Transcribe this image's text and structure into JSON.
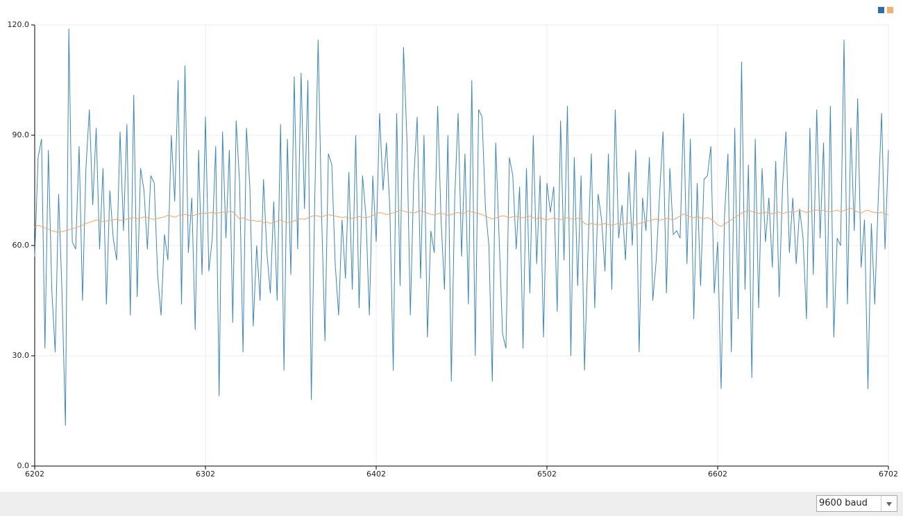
{
  "chart_data": {
    "type": "line",
    "xlim": [
      6202,
      6702
    ],
    "xticks": [
      6202,
      6302,
      6402,
      6502,
      6602,
      6702
    ],
    "ylim": [
      0,
      120
    ],
    "yticks": [
      {
        "value": 0,
        "label": "0.0"
      },
      {
        "value": 30,
        "label": "30.0"
      },
      {
        "value": 60,
        "label": "60.0"
      },
      {
        "value": 90,
        "label": "90.0"
      },
      {
        "value": 120,
        "label": "120.0"
      }
    ],
    "grid": true,
    "legend": "top-right",
    "x": [
      6202,
      6204,
      6206,
      6208,
      6210,
      6212,
      6214,
      6216,
      6218,
      6220,
      6222,
      6224,
      6226,
      6228,
      6230,
      6232,
      6234,
      6236,
      6238,
      6240,
      6242,
      6244,
      6246,
      6248,
      6250,
      6252,
      6254,
      6256,
      6258,
      6260,
      6262,
      6264,
      6266,
      6268,
      6270,
      6272,
      6274,
      6276,
      6278,
      6280,
      6282,
      6284,
      6286,
      6288,
      6290,
      6292,
      6294,
      6296,
      6298,
      6300,
      6302,
      6304,
      6306,
      6308,
      6310,
      6312,
      6314,
      6316,
      6318,
      6320,
      6322,
      6324,
      6326,
      6328,
      6330,
      6332,
      6334,
      6336,
      6338,
      6340,
      6342,
      6344,
      6346,
      6348,
      6350,
      6352,
      6354,
      6356,
      6358,
      6360,
      6362,
      6364,
      6366,
      6368,
      6370,
      6372,
      6374,
      6376,
      6378,
      6380,
      6382,
      6384,
      6386,
      6388,
      6390,
      6392,
      6394,
      6396,
      6398,
      6400,
      6402,
      6404,
      6406,
      6408,
      6410,
      6412,
      6414,
      6416,
      6418,
      6420,
      6422,
      6424,
      6426,
      6428,
      6430,
      6432,
      6434,
      6436,
      6438,
      6440,
      6442,
      6444,
      6446,
      6448,
      6450,
      6452,
      6454,
      6456,
      6458,
      6460,
      6462,
      6464,
      6466,
      6468,
      6470,
      6472,
      6474,
      6476,
      6478,
      6480,
      6482,
      6484,
      6486,
      6488,
      6490,
      6492,
      6494,
      6496,
      6498,
      6500,
      6502,
      6504,
      6506,
      6508,
      6510,
      6512,
      6514,
      6516,
      6518,
      6520,
      6522,
      6524,
      6526,
      6528,
      6530,
      6532,
      6534,
      6536,
      6538,
      6540,
      6542,
      6544,
      6546,
      6548,
      6550,
      6552,
      6554,
      6556,
      6558,
      6560,
      6562,
      6564,
      6566,
      6568,
      6570,
      6572,
      6574,
      6576,
      6578,
      6580,
      6582,
      6584,
      6586,
      6588,
      6590,
      6592,
      6594,
      6596,
      6598,
      6600,
      6602,
      6604,
      6606,
      6608,
      6610,
      6612,
      6614,
      6616,
      6618,
      6620,
      6622,
      6624,
      6626,
      6628,
      6630,
      6632,
      6634,
      6636,
      6638,
      6640,
      6642,
      6644,
      6646,
      6648,
      6650,
      6652,
      6654,
      6656,
      6658,
      6660,
      6662,
      6664,
      6666,
      6668,
      6670,
      6672,
      6674,
      6676,
      6678,
      6680,
      6682,
      6684,
      6686,
      6688,
      6690,
      6692,
      6694,
      6696,
      6698,
      6700,
      6702
    ],
    "series": [
      {
        "color": "#3a86bf",
        "legend_color": "#2a6fad",
        "values": [
          57,
          84,
          89,
          32,
          86,
          48,
          31,
          74,
          47,
          11,
          119,
          61,
          59,
          87,
          45,
          81,
          97,
          71,
          92,
          59,
          81,
          44,
          75,
          62,
          56,
          91,
          64,
          93,
          41,
          101,
          46,
          81,
          75,
          59,
          79,
          77,
          52,
          41,
          63,
          56,
          90,
          72,
          105,
          44,
          109,
          58,
          73,
          37,
          86,
          52,
          95,
          53,
          62,
          87,
          19,
          91,
          62,
          86,
          39,
          94,
          77,
          31,
          92,
          76,
          38,
          60,
          45,
          78,
          58,
          47,
          72,
          45,
          93,
          26,
          89,
          52,
          106,
          59,
          107,
          70,
          105,
          18,
          72,
          116,
          69,
          34,
          85,
          82,
          55,
          41,
          67,
          51,
          80,
          48,
          90,
          43,
          79,
          68,
          41,
          79,
          61,
          96,
          75,
          88,
          70,
          26,
          96,
          49,
          114,
          89,
          41,
          78,
          95,
          51,
          90,
          35,
          64,
          58,
          98,
          67,
          48,
          90,
          23,
          73,
          96,
          57,
          85,
          44,
          105,
          30,
          97,
          95,
          70,
          60,
          23,
          88,
          62,
          36,
          32,
          84,
          79,
          59,
          76,
          32,
          81,
          47,
          90,
          55,
          79,
          35,
          77,
          69,
          76,
          42,
          94,
          56,
          98,
          30,
          84,
          49,
          79,
          26,
          58,
          85,
          43,
          74,
          67,
          53,
          85,
          48,
          97,
          62,
          71,
          56,
          80,
          60,
          86,
          31,
          73,
          64,
          84,
          45,
          56,
          74,
          91,
          47,
          81,
          63,
          64,
          62,
          96,
          55,
          89,
          40,
          77,
          49,
          78,
          79,
          87,
          47,
          61,
          21,
          68,
          85,
          31,
          92,
          40,
          110,
          48,
          82,
          24,
          89,
          43,
          81,
          61,
          73,
          54,
          83,
          46,
          76,
          91,
          58,
          73,
          55,
          70,
          62,
          40,
          92,
          52,
          97,
          62,
          88,
          43,
          98,
          35,
          62,
          60,
          116,
          44,
          92,
          64,
          100,
          54,
          67,
          21,
          66,
          44,
          72,
          96,
          59,
          86
        ]
      },
      {
        "color": "#f5a560",
        "legend_color": "#f9ad6c",
        "values": [
          65,
          65.5,
          65.2,
          64.8,
          64.5,
          64,
          63.8,
          63.6,
          63.8,
          64,
          64.3,
          64.6,
          64.8,
          65.2,
          65.5,
          66,
          66.3,
          66.6,
          67,
          66.8,
          66.5,
          66.6,
          66.9,
          67,
          67.2,
          66.8,
          67,
          67.2,
          67.4,
          67.6,
          67.3,
          67.5,
          67.8,
          67.6,
          67.3,
          67.1,
          67.4,
          67.6,
          67.8,
          68.2,
          68,
          67.7,
          68.1,
          68.3,
          68.5,
          68.2,
          68,
          68.3,
          68.6,
          68.8,
          68.7,
          68.9,
          69,
          68.8,
          68.9,
          69.1,
          69,
          69.3,
          69.2,
          68.3,
          67.2,
          67.6,
          67.1,
          66.8,
          66.9,
          66.5,
          66.7,
          66.2,
          66.4,
          66,
          66.3,
          66.6,
          67,
          66.5,
          66.2,
          66.4,
          66.7,
          67,
          67.3,
          67.1,
          67.5,
          67.9,
          68.2,
          68,
          67.8,
          68.1,
          68.4,
          68.2,
          68,
          67.8,
          67.6,
          67.8,
          67.5,
          67.4,
          67.6,
          67.9,
          67.7,
          67.5,
          67.8,
          68.2,
          68.6,
          69,
          68.8,
          68.4,
          68.6,
          68.9,
          69.2,
          69.6,
          69.4,
          69.1,
          69,
          68.8,
          69.2,
          69.5,
          69.2,
          68.8,
          68.5,
          68.3,
          68.6,
          68.9,
          68.5,
          68.2,
          68.4,
          68.8,
          69,
          68.7,
          68.9,
          69.4,
          69.2,
          68.9,
          68.7,
          68.4,
          68,
          67.6,
          67.2,
          67.5,
          67.8,
          68.1,
          67.9,
          67.6,
          67.8,
          68,
          67.7,
          67.5,
          67.8,
          68,
          67.6,
          67.3,
          67.5,
          67.2,
          67,
          67.3,
          67.5,
          67.2,
          67,
          67.4,
          67.6,
          67.3,
          67.1,
          67.5,
          67.2,
          66,
          65.7,
          66,
          65.8,
          65.6,
          65.8,
          66,
          65.7,
          65.5,
          65.8,
          66,
          65.7,
          65.9,
          66.2,
          65.8,
          65.6,
          66,
          66.2,
          66.5,
          66.8,
          67,
          67.2,
          66.9,
          67.1,
          67.4,
          67.2,
          67,
          67.5,
          68,
          68.6,
          68.2,
          67.8,
          67.5,
          67.9,
          67.6,
          67.3,
          67.6,
          67.2,
          66.5,
          65.6,
          65.2,
          65.8,
          66.4,
          67,
          67.6,
          68.2,
          68.8,
          69.2,
          69.5,
          69.3,
          69,
          68.7,
          68.9,
          69.1,
          68.8,
          68.6,
          68.9,
          69.1,
          68.7,
          69,
          69.2,
          68.9,
          69.3,
          69.6,
          69.3,
          69,
          69.2,
          69.5,
          69.7,
          69.4,
          69.6,
          69.3,
          69.1,
          69.4,
          69.6,
          69.2,
          69.5,
          69.8,
          70.2,
          69.6,
          69.1,
          68.8,
          69.4,
          69.6,
          69.2,
          69,
          68.8,
          69.1,
          68.6,
          68.3
        ]
      }
    ]
  },
  "toolbar": {
    "baud": "9600 baud"
  }
}
